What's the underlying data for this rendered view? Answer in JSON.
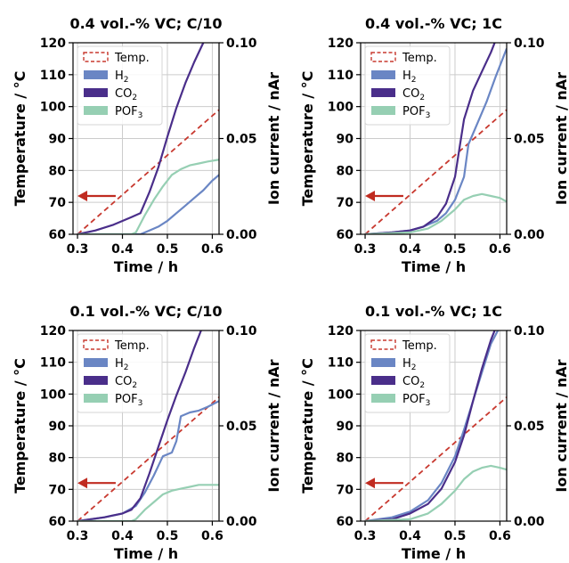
{
  "colors": {
    "temp": "#c8392f",
    "h2": "#6a86c4",
    "co2": "#4a2e8a",
    "pof3": "#96cfb3",
    "arrow": "#c02b20",
    "grid": "#cccccc"
  },
  "chart_data": [
    {
      "type": "line",
      "title": "0.4 vol.-% VC; C/10",
      "xlabel": "Time / h",
      "ylabel": "Temperature / °C",
      "y2label": "Ion current / nAr",
      "xlim": [
        0.29,
        0.615
      ],
      "ylim": [
        60,
        120
      ],
      "y2lim": [
        0,
        0.1
      ],
      "xticks": [
        "0.3",
        "0.4",
        "0.5",
        "0.6"
      ],
      "yticks": [
        "60",
        "70",
        "80",
        "90",
        "100",
        "110",
        "120"
      ],
      "y2ticks": [
        "0.00",
        "0.05",
        "0.10"
      ],
      "grid": true,
      "legend_position": "top-left",
      "temp_arrow": {
        "from_x": 0.385,
        "to_x": 0.3,
        "y": 72
      },
      "series": [
        {
          "name": "Temp.",
          "axis": "left",
          "style": "dashed",
          "x": [
            0.3,
            0.615
          ],
          "y": [
            60,
            99
          ]
        },
        {
          "name": "H2",
          "axis": "right",
          "x": [
            0.3,
            0.44,
            0.46,
            0.48,
            0.5,
            0.52,
            0.54,
            0.56,
            0.58,
            0.6,
            0.615
          ],
          "y": [
            0,
            0,
            0.002,
            0.004,
            0.007,
            0.011,
            0.015,
            0.019,
            0.023,
            0.028,
            0.031
          ]
        },
        {
          "name": "CO2",
          "axis": "right",
          "x": [
            0.3,
            0.34,
            0.38,
            0.42,
            0.44,
            0.46,
            0.48,
            0.5,
            0.52,
            0.54,
            0.56,
            0.58,
            0.59
          ],
          "y": [
            0,
            0.002,
            0.005,
            0.009,
            0.011,
            0.022,
            0.035,
            0.051,
            0.066,
            0.079,
            0.09,
            0.1,
            0.104
          ]
        },
        {
          "name": "POF3",
          "axis": "right",
          "x": [
            0.3,
            0.42,
            0.43,
            0.45,
            0.47,
            0.49,
            0.51,
            0.53,
            0.55,
            0.57,
            0.59,
            0.615
          ],
          "y": [
            0,
            0,
            0.001,
            0.01,
            0.018,
            0.025,
            0.031,
            0.034,
            0.036,
            0.037,
            0.038,
            0.039
          ]
        }
      ]
    },
    {
      "type": "line",
      "title": "0.4 vol.-% VC; 1C",
      "xlabel": "Time / h",
      "ylabel": "Temperature / °C",
      "y2label": "Ion current / nAr",
      "xlim": [
        0.29,
        0.615
      ],
      "ylim": [
        60,
        120
      ],
      "y2lim": [
        0,
        0.1
      ],
      "xticks": [
        "0.3",
        "0.4",
        "0.5",
        "0.6"
      ],
      "yticks": [
        "60",
        "70",
        "80",
        "90",
        "100",
        "110",
        "120"
      ],
      "y2ticks": [
        "0.00",
        "0.05",
        "0.10"
      ],
      "grid": true,
      "legend_position": "top-left",
      "temp_arrow": {
        "from_x": 0.385,
        "to_x": 0.3,
        "y": 72
      },
      "series": [
        {
          "name": "Temp.",
          "axis": "left",
          "style": "dashed",
          "x": [
            0.3,
            0.615
          ],
          "y": [
            60,
            99
          ]
        },
        {
          "name": "H2",
          "axis": "right",
          "x": [
            0.3,
            0.36,
            0.4,
            0.43,
            0.46,
            0.48,
            0.5,
            0.52,
            0.53,
            0.55,
            0.57,
            0.59,
            0.615
          ],
          "y": [
            0,
            0.001,
            0.002,
            0.004,
            0.007,
            0.011,
            0.018,
            0.03,
            0.047,
            0.058,
            0.069,
            0.082,
            0.097
          ]
        },
        {
          "name": "CO2",
          "axis": "right",
          "x": [
            0.3,
            0.36,
            0.4,
            0.43,
            0.46,
            0.48,
            0.5,
            0.51,
            0.52,
            0.54,
            0.56,
            0.58,
            0.595
          ],
          "y": [
            0,
            0.001,
            0.002,
            0.004,
            0.009,
            0.016,
            0.03,
            0.045,
            0.06,
            0.075,
            0.085,
            0.095,
            0.104
          ]
        },
        {
          "name": "POF3",
          "axis": "right",
          "x": [
            0.3,
            0.4,
            0.44,
            0.47,
            0.5,
            0.52,
            0.54,
            0.56,
            0.58,
            0.6,
            0.615
          ],
          "y": [
            0,
            0.001,
            0.003,
            0.007,
            0.013,
            0.018,
            0.02,
            0.021,
            0.02,
            0.019,
            0.017
          ]
        }
      ]
    },
    {
      "type": "line",
      "title": "0.1 vol.-% VC; C/10",
      "xlabel": "Time / h",
      "ylabel": "Temperature / °C",
      "y2label": "Ion current / nAr",
      "xlim": [
        0.29,
        0.615
      ],
      "ylim": [
        60,
        120
      ],
      "y2lim": [
        0,
        0.1
      ],
      "xticks": [
        "0.3",
        "0.4",
        "0.5",
        "0.6"
      ],
      "yticks": [
        "60",
        "70",
        "80",
        "90",
        "100",
        "110",
        "120"
      ],
      "y2ticks": [
        "0.00",
        "0.05",
        "0.10"
      ],
      "grid": true,
      "legend_position": "top-left",
      "temp_arrow": {
        "from_x": 0.385,
        "to_x": 0.3,
        "y": 72
      },
      "series": [
        {
          "name": "Temp.",
          "axis": "left",
          "style": "dashed",
          "x": [
            0.3,
            0.615
          ],
          "y": [
            60,
            99
          ]
        },
        {
          "name": "H2",
          "axis": "right",
          "x": [
            0.3,
            0.36,
            0.4,
            0.43,
            0.45,
            0.47,
            0.49,
            0.51,
            0.52,
            0.53,
            0.55,
            0.57,
            0.59,
            0.615
          ],
          "y": [
            0,
            0.002,
            0.004,
            0.008,
            0.015,
            0.024,
            0.034,
            0.036,
            0.042,
            0.055,
            0.057,
            0.058,
            0.06,
            0.063
          ]
        },
        {
          "name": "CO2",
          "axis": "right",
          "x": [
            0.3,
            0.36,
            0.4,
            0.42,
            0.44,
            0.46,
            0.48,
            0.5,
            0.52,
            0.54,
            0.56,
            0.575
          ],
          "y": [
            0,
            0.002,
            0.004,
            0.006,
            0.012,
            0.025,
            0.039,
            0.053,
            0.066,
            0.078,
            0.091,
            0.1
          ]
        },
        {
          "name": "POF3",
          "axis": "right",
          "x": [
            0.3,
            0.42,
            0.43,
            0.45,
            0.47,
            0.49,
            0.51,
            0.53,
            0.55,
            0.57,
            0.59,
            0.615
          ],
          "y": [
            0,
            0,
            0.001,
            0.006,
            0.01,
            0.014,
            0.016,
            0.017,
            0.018,
            0.019,
            0.019,
            0.019
          ]
        }
      ]
    },
    {
      "type": "line",
      "title": "0.1 vol.-% VC; 1C",
      "xlabel": "Time / h",
      "ylabel": "Temperature / °C",
      "y2label": "Ion current / nAr",
      "xlim": [
        0.29,
        0.615
      ],
      "ylim": [
        60,
        120
      ],
      "y2lim": [
        0,
        0.1
      ],
      "xticks": [
        "0.3",
        "0.4",
        "0.5",
        "0.6"
      ],
      "yticks": [
        "60",
        "70",
        "80",
        "90",
        "100",
        "110",
        "120"
      ],
      "y2ticks": [
        "0.00",
        "0.05",
        "0.10"
      ],
      "grid": true,
      "legend_position": "top-left",
      "temp_arrow": {
        "from_x": 0.385,
        "to_x": 0.3,
        "y": 72
      },
      "series": [
        {
          "name": "Temp.",
          "axis": "left",
          "style": "dashed",
          "x": [
            0.3,
            0.615
          ],
          "y": [
            60,
            99
          ]
        },
        {
          "name": "H2",
          "axis": "right",
          "x": [
            0.3,
            0.36,
            0.4,
            0.44,
            0.47,
            0.5,
            0.52,
            0.54,
            0.56,
            0.58,
            0.6
          ],
          "y": [
            0,
            0.002,
            0.005,
            0.011,
            0.02,
            0.034,
            0.048,
            0.063,
            0.078,
            0.093,
            0.102
          ]
        },
        {
          "name": "CO2",
          "axis": "right",
          "x": [
            0.3,
            0.36,
            0.4,
            0.44,
            0.47,
            0.5,
            0.52,
            0.54,
            0.56,
            0.58,
            0.595
          ],
          "y": [
            0,
            0.001,
            0.004,
            0.009,
            0.017,
            0.031,
            0.045,
            0.063,
            0.08,
            0.095,
            0.104
          ]
        },
        {
          "name": "POF3",
          "axis": "right",
          "x": [
            0.3,
            0.4,
            0.44,
            0.47,
            0.5,
            0.52,
            0.54,
            0.56,
            0.58,
            0.6,
            0.615
          ],
          "y": [
            0,
            0.001,
            0.004,
            0.009,
            0.016,
            0.022,
            0.026,
            0.028,
            0.029,
            0.028,
            0.027
          ]
        }
      ]
    }
  ]
}
